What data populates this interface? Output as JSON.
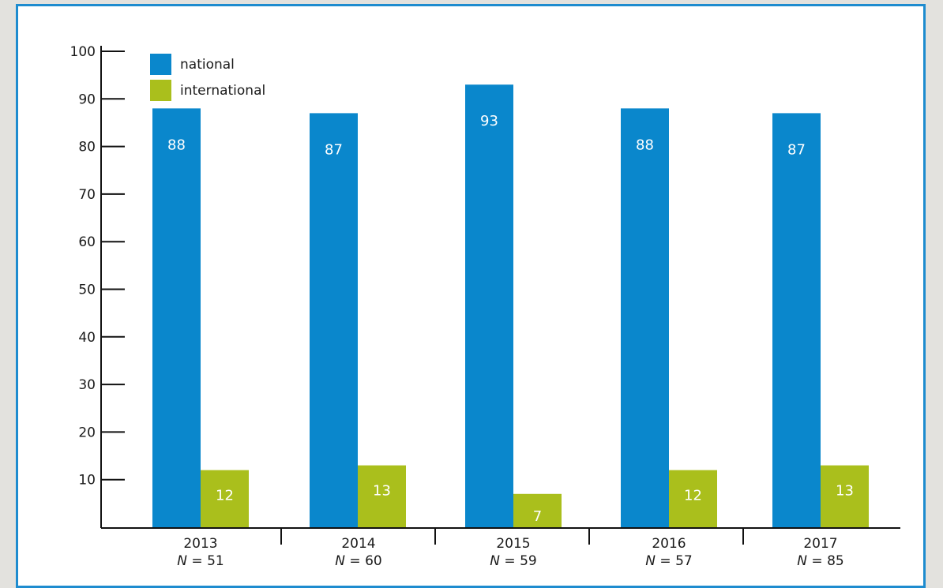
{
  "chart_data": {
    "type": "bar",
    "categories": [
      "2013",
      "2014",
      "2015",
      "2016",
      "2017"
    ],
    "category_notes": [
      {
        "prefix": "N",
        "text": " = 51"
      },
      {
        "prefix": "N",
        "text": " = 60"
      },
      {
        "prefix": "N",
        "text": " = 59"
      },
      {
        "prefix": "N",
        "text": " = 57"
      },
      {
        "prefix": "N",
        "text": " = 85"
      }
    ],
    "series": [
      {
        "name": "national",
        "color": "#0a87cc",
        "values": [
          88,
          87,
          93,
          88,
          87
        ]
      },
      {
        "name": "international",
        "color": "#aabf1c",
        "values": [
          12,
          13,
          7,
          12,
          13
        ]
      }
    ],
    "y_ticks": [
      10,
      20,
      30,
      40,
      50,
      60,
      70,
      80,
      90,
      100
    ],
    "ylim": [
      0,
      100
    ],
    "legend_position": "top-left",
    "grid": false
  }
}
